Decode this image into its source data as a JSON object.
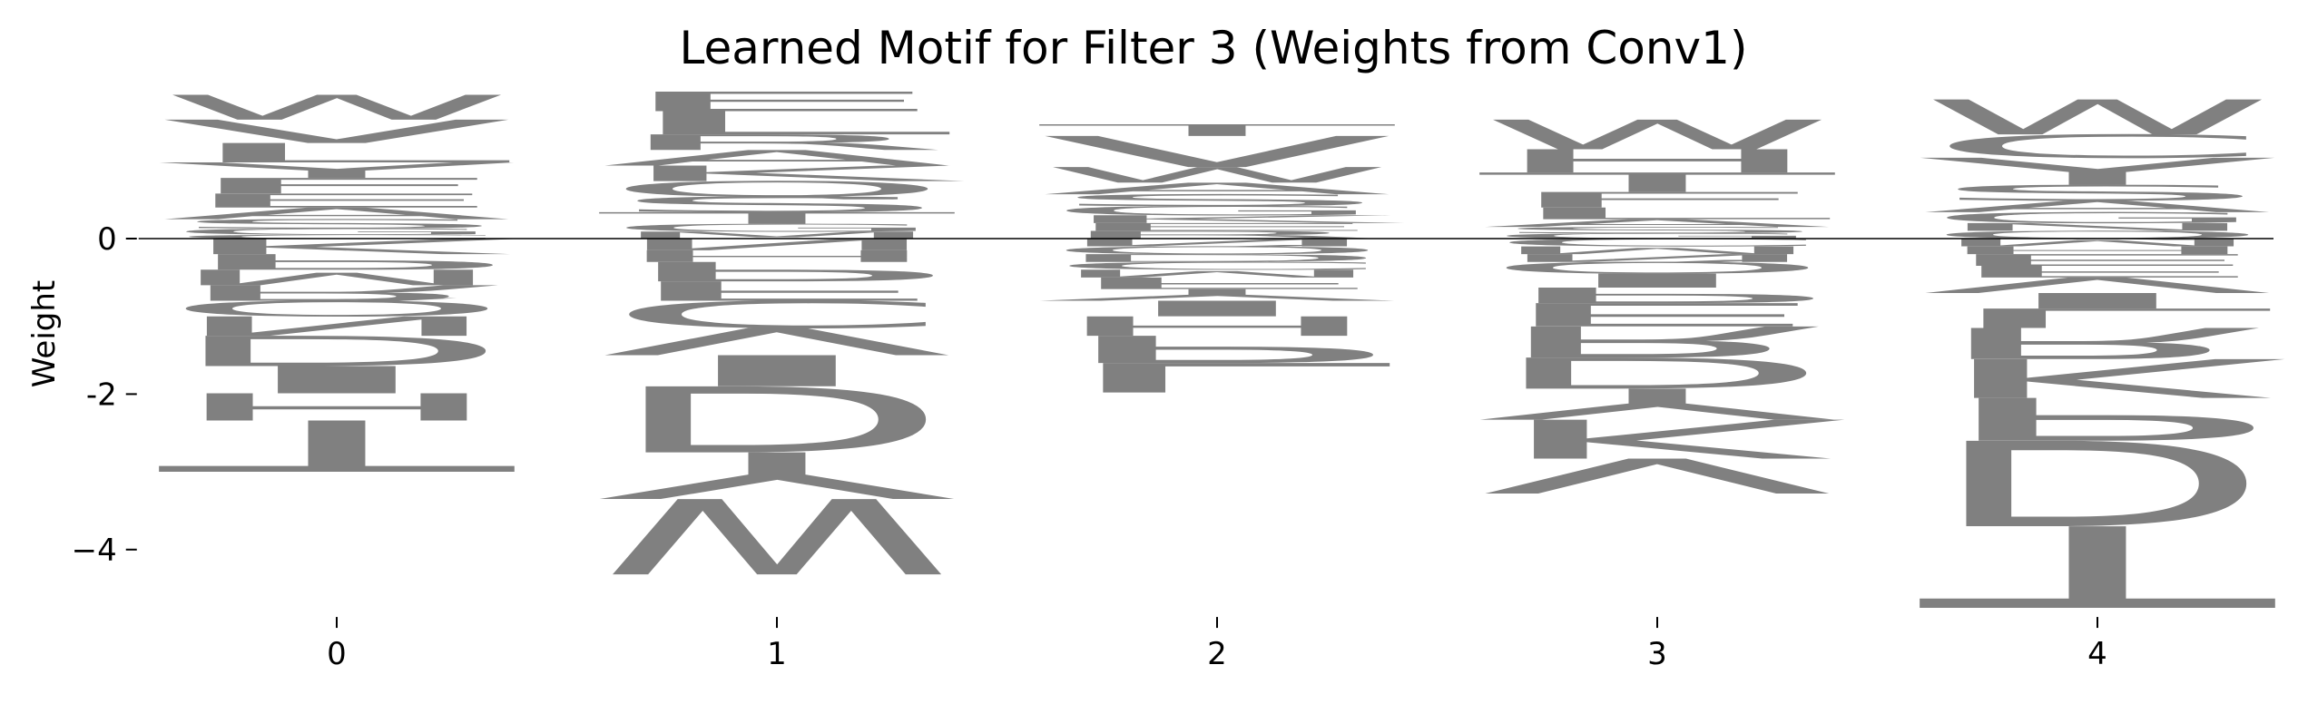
{
  "chart_data": {
    "type": "logo",
    "title": "Learned Motif for Filter 3 (Weights from Conv1)",
    "y_label": "Weight",
    "color": "#808080",
    "xlim": [
      -0.45,
      4.4
    ],
    "ylim": [
      -4.75,
      1.9
    ],
    "xticks": [
      0,
      1,
      2,
      3,
      4
    ],
    "yticks": [
      0,
      -2,
      {
        "value": -4,
        "label": "−4"
      }
    ],
    "positions": [
      {
        "x": 0,
        "letters": [
          {
            "letter": "C",
            "weight": 0.05
          },
          {
            "letter": "G",
            "weight": 0.08
          },
          {
            "letter": "S",
            "weight": 0.12
          },
          {
            "letter": "A",
            "weight": 0.15
          },
          {
            "letter": "E",
            "weight": 0.18
          },
          {
            "letter": "F",
            "weight": 0.2
          },
          {
            "letter": "Y",
            "weight": 0.2
          },
          {
            "letter": "L",
            "weight": 0.25
          },
          {
            "letter": "V",
            "weight": 0.3
          },
          {
            "letter": "W",
            "weight": 0.32
          },
          {
            "letter": "K",
            "weight": -0.2
          },
          {
            "letter": "P",
            "weight": -0.2
          },
          {
            "letter": "M",
            "weight": -0.2
          },
          {
            "letter": "R",
            "weight": -0.2
          },
          {
            "letter": "Q",
            "weight": -0.2
          },
          {
            "letter": "N",
            "weight": -0.25
          },
          {
            "letter": "D",
            "weight": -0.39
          },
          {
            "letter": "I",
            "weight": -0.35
          },
          {
            "letter": "H",
            "weight": -0.35
          },
          {
            "letter": "T",
            "weight": -0.66
          }
        ]
      },
      {
        "x": 1,
        "letters": [
          {
            "letter": "M",
            "weight": 0.09
          },
          {
            "letter": "G",
            "weight": 0.1
          },
          {
            "letter": "T",
            "weight": 0.15
          },
          {
            "letter": "S",
            "weight": 0.2
          },
          {
            "letter": "Q",
            "weight": 0.2
          },
          {
            "letter": "K",
            "weight": 0.2
          },
          {
            "letter": "A",
            "weight": 0.2
          },
          {
            "letter": "R",
            "weight": 0.2
          },
          {
            "letter": "L",
            "weight": 0.3
          },
          {
            "letter": "E",
            "weight": 0.25
          },
          {
            "letter": "N",
            "weight": -0.15
          },
          {
            "letter": "H",
            "weight": -0.15
          },
          {
            "letter": "P",
            "weight": -0.25
          },
          {
            "letter": "F",
            "weight": -0.25
          },
          {
            "letter": "C",
            "weight": -0.35
          },
          {
            "letter": "V",
            "weight": -0.35
          },
          {
            "letter": "I",
            "weight": -0.4
          },
          {
            "letter": "D",
            "weight": -0.85
          },
          {
            "letter": "Y",
            "weight": -0.6
          },
          {
            "letter": "W",
            "weight": -0.97
          }
        ]
      },
      {
        "x": 2,
        "letters": [
          {
            "letter": "R",
            "weight": 0.1
          },
          {
            "letter": "E",
            "weight": 0.1
          },
          {
            "letter": "K",
            "weight": 0.1
          },
          {
            "letter": "G",
            "weight": 0.12
          },
          {
            "letter": "S",
            "weight": 0.15
          },
          {
            "letter": "A",
            "weight": 0.15
          },
          {
            "letter": "W",
            "weight": 0.2
          },
          {
            "letter": "V",
            "weight": 0.4
          },
          {
            "letter": "T",
            "weight": 0.15
          },
          {
            "letter": "N",
            "weight": -0.1
          },
          {
            "letter": "Q",
            "weight": -0.1
          },
          {
            "letter": "D",
            "weight": -0.1
          },
          {
            "letter": "C",
            "weight": -0.1
          },
          {
            "letter": "M",
            "weight": -0.1
          },
          {
            "letter": "F",
            "weight": -0.15
          },
          {
            "letter": "Y",
            "weight": -0.15
          },
          {
            "letter": "I",
            "weight": -0.2
          },
          {
            "letter": "H",
            "weight": -0.25
          },
          {
            "letter": "P",
            "weight": -0.35
          },
          {
            "letter": "L",
            "weight": -0.38
          }
        ]
      },
      {
        "x": 3,
        "letters": [
          {
            "letter": "G",
            "weight": 0.07
          },
          {
            "letter": "S",
            "weight": 0.08
          },
          {
            "letter": "A",
            "weight": 0.1
          },
          {
            "letter": "L",
            "weight": 0.15
          },
          {
            "letter": "F",
            "weight": 0.2
          },
          {
            "letter": "T",
            "weight": 0.25
          },
          {
            "letter": "H",
            "weight": 0.3
          },
          {
            "letter": "W",
            "weight": 0.38
          },
          {
            "letter": "C",
            "weight": -0.1
          },
          {
            "letter": "M",
            "weight": -0.1
          },
          {
            "letter": "N",
            "weight": -0.1
          },
          {
            "letter": "Q",
            "weight": -0.15
          },
          {
            "letter": "I",
            "weight": -0.18
          },
          {
            "letter": "P",
            "weight": -0.2
          },
          {
            "letter": "E",
            "weight": -0.3
          },
          {
            "letter": "R",
            "weight": -0.4
          },
          {
            "letter": "D",
            "weight": -0.4
          },
          {
            "letter": "Y",
            "weight": -0.4
          },
          {
            "letter": "K",
            "weight": -0.5
          },
          {
            "letter": "V",
            "weight": -0.45
          }
        ]
      },
      {
        "x": 4,
        "letters": [
          {
            "letter": "Q",
            "weight": 0.1
          },
          {
            "letter": "N",
            "weight": 0.1
          },
          {
            "letter": "G",
            "weight": 0.14
          },
          {
            "letter": "A",
            "weight": 0.15
          },
          {
            "letter": "S",
            "weight": 0.2
          },
          {
            "letter": "Y",
            "weight": 0.35
          },
          {
            "letter": "C",
            "weight": 0.3
          },
          {
            "letter": "W",
            "weight": 0.45
          },
          {
            "letter": "M",
            "weight": -0.1
          },
          {
            "letter": "H",
            "weight": -0.1
          },
          {
            "letter": "E",
            "weight": -0.15
          },
          {
            "letter": "F",
            "weight": -0.15
          },
          {
            "letter": "V",
            "weight": -0.2
          },
          {
            "letter": "I",
            "weight": -0.2
          },
          {
            "letter": "L",
            "weight": -0.25
          },
          {
            "letter": "R",
            "weight": -0.4
          },
          {
            "letter": "K",
            "weight": -0.5
          },
          {
            "letter": "P",
            "weight": -0.55
          },
          {
            "letter": "D",
            "weight": -1.1
          },
          {
            "letter": "T",
            "weight": -1.05
          }
        ]
      }
    ]
  }
}
